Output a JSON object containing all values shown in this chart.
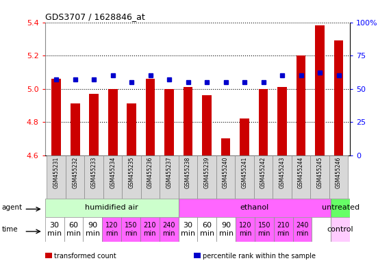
{
  "title": "GDS3707 / 1628846_at",
  "samples": [
    "GSM455231",
    "GSM455232",
    "GSM455233",
    "GSM455234",
    "GSM455235",
    "GSM455236",
    "GSM455237",
    "GSM455238",
    "GSM455239",
    "GSM455240",
    "GSM455241",
    "GSM455242",
    "GSM455243",
    "GSM455244",
    "GSM455245",
    "GSM455246"
  ],
  "transformed_counts": [
    5.06,
    4.91,
    4.97,
    5.0,
    4.91,
    5.06,
    5.0,
    5.01,
    4.96,
    4.7,
    4.82,
    5.0,
    5.01,
    5.2,
    5.38,
    5.29
  ],
  "percentile_ranks": [
    57,
    57,
    57,
    60,
    55,
    60,
    57,
    55,
    55,
    55,
    55,
    55,
    60,
    60,
    62,
    60
  ],
  "ylim": [
    4.6,
    5.4
  ],
  "yticks": [
    4.6,
    4.8,
    5.0,
    5.2,
    5.4
  ],
  "right_yticks": [
    0,
    25,
    50,
    75,
    100
  ],
  "right_ytick_labels": [
    "0",
    "25",
    "50",
    "75",
    "100%"
  ],
  "bar_color": "#cc0000",
  "dot_color": "#0000cc",
  "agent_groups": [
    {
      "label": "humidified air",
      "start": 0,
      "end": 7,
      "color": "#ccffcc"
    },
    {
      "label": "ethanol",
      "start": 7,
      "end": 15,
      "color": "#ff66ff"
    },
    {
      "label": "untreated",
      "start": 15,
      "end": 16,
      "color": "#66ff66"
    }
  ],
  "time_labels": [
    "30\nmin",
    "60\nmin",
    "90\nmin",
    "120\nmin",
    "150\nmin",
    "210\nmin",
    "240\nmin",
    "30\nmin",
    "60\nmin",
    "90\nmin",
    "120\nmin",
    "150\nmin",
    "210\nmin",
    "240\nmin",
    "",
    "control"
  ],
  "time_colors": [
    "#ffffff",
    "#ffffff",
    "#ffffff",
    "#ff66ff",
    "#ff66ff",
    "#ff66ff",
    "#ff66ff",
    "#ffffff",
    "#ffffff",
    "#ffffff",
    "#ff66ff",
    "#ff66ff",
    "#ff66ff",
    "#ff66ff",
    "#ffffff",
    "#ffccff"
  ],
  "time_font_sizes": [
    8,
    8,
    8,
    7,
    7,
    7,
    7,
    8,
    8,
    8,
    7,
    7,
    7,
    7,
    8,
    8
  ],
  "legend_items": [
    {
      "color": "#cc0000",
      "label": "transformed count"
    },
    {
      "color": "#0000cc",
      "label": "percentile rank within the sample"
    }
  ],
  "bar_width": 0.5
}
